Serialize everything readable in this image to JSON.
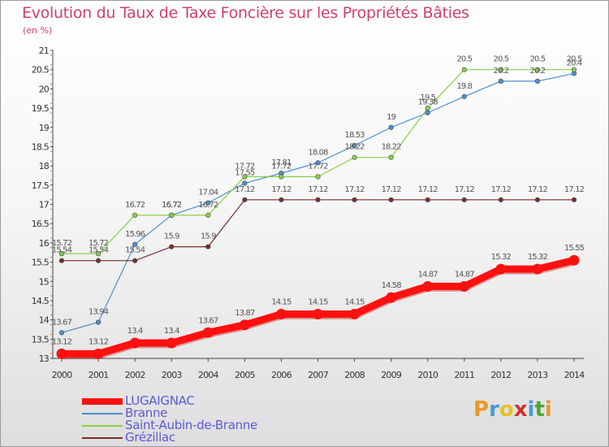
{
  "chart_data": {
    "type": "line",
    "title": "Evolution du Taux de Taxe Foncière sur les Propriétés Bâties",
    "unit_label": "(en %)",
    "x": [
      2000,
      2001,
      2002,
      2003,
      2004,
      2005,
      2006,
      2007,
      2008,
      2009,
      2010,
      2011,
      2012,
      2013,
      2014
    ],
    "ylim": [
      13,
      21
    ],
    "yticks": [
      13,
      13.5,
      14,
      14.5,
      15,
      15.5,
      16,
      16.5,
      17,
      17.5,
      18,
      18.5,
      19,
      19.5,
      20,
      20.5,
      21
    ],
    "grid": false,
    "legend_position": "bottom-left",
    "series": [
      {
        "name": "Branne",
        "color": "#4e8ed0",
        "values": [
          13.67,
          13.94,
          15.96,
          16.72,
          17.04,
          17.55,
          17.81,
          18.08,
          18.53,
          19,
          19.38,
          19.8,
          20.2,
          20.2,
          20.4
        ],
        "labels": [
          "13.67",
          "13.94",
          "15.96",
          "16.72",
          "17.04",
          "17.55",
          "17.81",
          "18.08",
          "18.53",
          "19",
          "19.38",
          "19.8",
          "20.2",
          "20.2",
          "20.4"
        ]
      },
      {
        "name": "Saint-Aubin-de-Branne",
        "color": "#88d04a",
        "values": [
          15.72,
          15.72,
          16.72,
          16.72,
          16.72,
          17.72,
          17.72,
          17.72,
          18.22,
          18.22,
          19.5,
          20.5,
          20.5,
          20.5,
          20.5
        ],
        "labels": [
          "15.72",
          "15.72",
          "16.72",
          "16.72",
          "16.72",
          "17.72",
          "17.72",
          "17.72",
          "18.22",
          "18.22",
          "19.5",
          "20.5",
          "20.5",
          "20.5",
          "20.5"
        ]
      },
      {
        "name": "Grézillac",
        "color": "#7a2e2e",
        "values": [
          15.54,
          15.54,
          15.54,
          15.9,
          15.9,
          17.12,
          17.12,
          17.12,
          17.12,
          17.12,
          17.12,
          17.12,
          17.12,
          17.12,
          17.12
        ],
        "labels": [
          "15.54",
          "15.54",
          "15.54",
          "15.9",
          "15.9",
          "17.12",
          "17.12",
          "17.12",
          "17.12",
          "17.12",
          "17.12",
          "17.12",
          "17.12",
          "17.12",
          "17.12"
        ]
      },
      {
        "name": "LUGAIGNAC",
        "color": "#ff1010",
        "values": [
          13.12,
          13.12,
          13.4,
          13.4,
          13.67,
          13.87,
          14.15,
          14.15,
          14.15,
          14.58,
          14.87,
          14.87,
          15.32,
          15.32,
          15.55
        ],
        "labels": [
          "13.12",
          "13.12",
          "13.4",
          "13.4",
          "13.67",
          "13.87",
          "14.15",
          "14.15",
          "14.15",
          "14.58",
          "14.87",
          "14.87",
          "15.32",
          "15.32",
          "15.55"
        ]
      }
    ],
    "legend_order": [
      "LUGAIGNAC",
      "Branne",
      "Saint-Aubin-de-Branne",
      "Grézillac"
    ]
  },
  "logo": {
    "letters": [
      "P",
      "r",
      "o",
      "x",
      "i",
      "t",
      "i"
    ],
    "colors": [
      "#e89a28",
      "#4a9ad8",
      "#e8c020",
      "#d03030",
      "#4a9ad8",
      "#4aa838",
      "#e89a28"
    ]
  }
}
